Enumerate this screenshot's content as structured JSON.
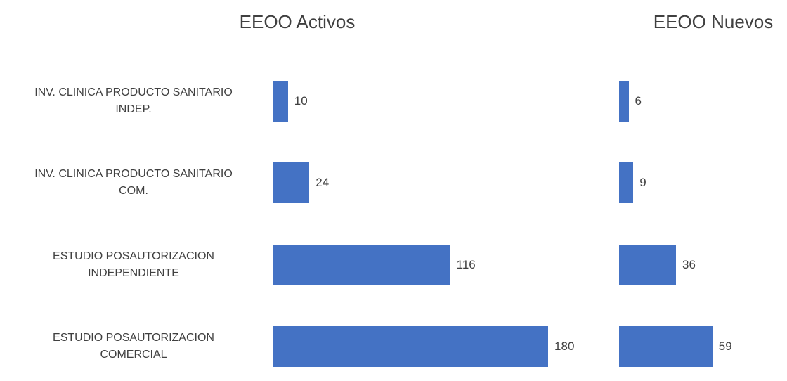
{
  "chart_data": [
    {
      "type": "bar",
      "orientation": "horizontal",
      "title": "EEOO Activos",
      "categories": [
        "INV. CLINICA PRODUCTO SANITARIO\nINDEP.",
        "INV. CLINICA PRODUCTO SANITARIO\nCOM.",
        "ESTUDIO POSAUTORIZACION\nINDEPENDIENTE",
        "ESTUDIO POSAUTORIZACION\nCOMERCIAL"
      ],
      "values": [
        10,
        24,
        116,
        180
      ],
      "color": "#4472c4"
    },
    {
      "type": "bar",
      "orientation": "horizontal",
      "title": "EEOO Nuevos",
      "values": [
        6,
        9,
        36,
        59
      ],
      "color": "#4472c4"
    }
  ]
}
